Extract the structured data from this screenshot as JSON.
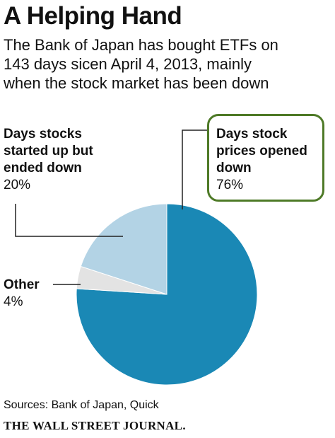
{
  "header": {
    "title": "A Helping Hand",
    "subtitle_lines": [
      "The Bank of Japan has bought ETFs on",
      "143 days sicen April 4, 2013, mainly",
      "when the stock market has been down"
    ]
  },
  "chart_data": {
    "type": "pie",
    "slices": [
      {
        "label_lines": [
          "Days stock",
          "prices opened",
          "down"
        ],
        "value": 76,
        "display": "76%",
        "color": "#1a88b5",
        "highlight_color": "#4e7a27"
      },
      {
        "label_lines": [
          "Other"
        ],
        "value": 4,
        "display": "4%",
        "color": "#e3e3e3"
      },
      {
        "label_lines": [
          "Days stocks",
          "started up but",
          "ended down"
        ],
        "value": 20,
        "display": "20%",
        "color": "#b3d3e5"
      }
    ]
  },
  "footer": {
    "sources": "Sources: Bank of Japan, Quick",
    "publisher": "THE WALL STREET JOURNAL."
  }
}
